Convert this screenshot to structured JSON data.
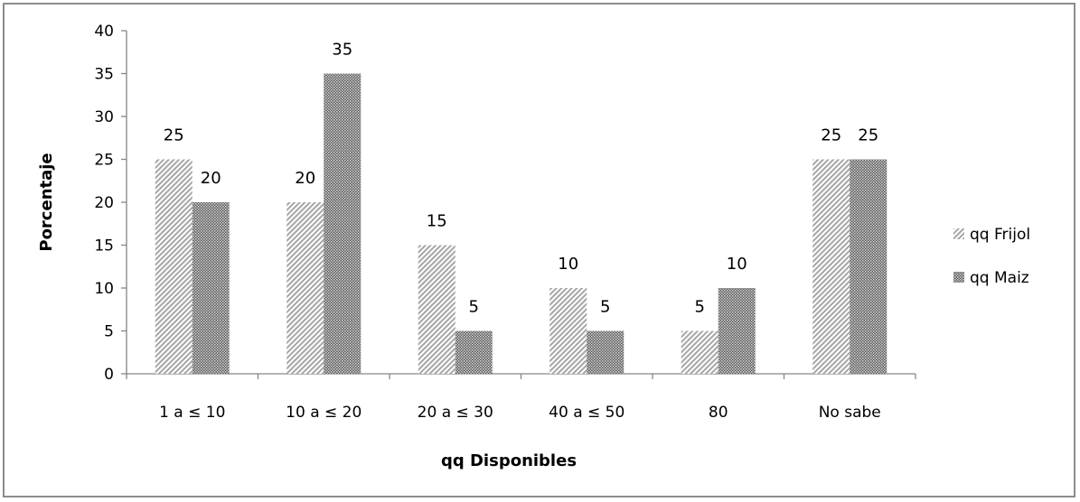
{
  "chart_data": {
    "type": "bar",
    "title": "",
    "xlabel": "qq Disponibles",
    "ylabel": "Porcentaje",
    "ylim": [
      0,
      40
    ],
    "yticks": [
      0,
      5,
      10,
      15,
      20,
      25,
      30,
      35,
      40
    ],
    "categories": [
      "1 a ≤ 10",
      "10 a ≤ 20",
      "20 a ≤ 30",
      "40 a ≤ 50",
      "80",
      "No sabe"
    ],
    "series": [
      {
        "name": "qq Frijol",
        "values": [
          25,
          20,
          15,
          10,
          5,
          25
        ],
        "pattern": "diagonal-light"
      },
      {
        "name": "qq Maiz",
        "values": [
          20,
          35,
          5,
          5,
          10,
          25
        ],
        "pattern": "crosshatch-dark"
      }
    ],
    "data_labels": true,
    "grid": false,
    "legend": "right"
  }
}
